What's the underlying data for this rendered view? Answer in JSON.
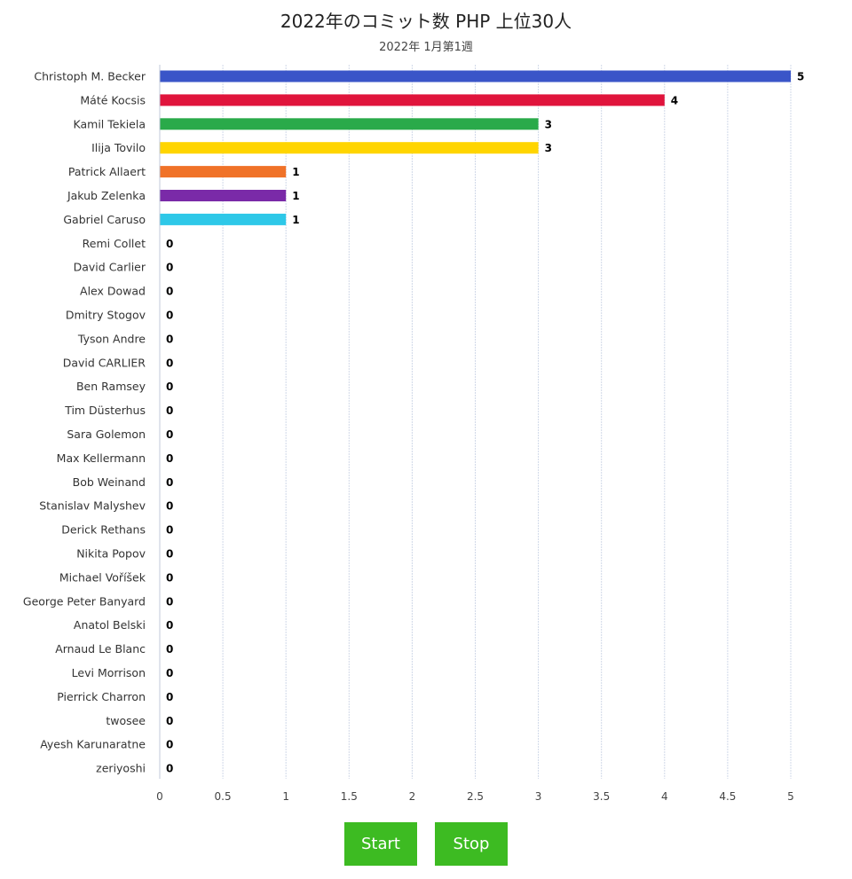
{
  "chart_data": {
    "type": "bar",
    "orientation": "horizontal",
    "title": "2022年のコミット数 PHP 上位30人",
    "subtitle": "2022年 1月第1週",
    "categories": [
      "Christoph M. Becker",
      "Máté Kocsis",
      "Kamil Tekiela",
      "Ilija Tovilo",
      "Patrick Allaert",
      "Jakub Zelenka",
      "Gabriel Caruso",
      "Remi Collet",
      "David Carlier",
      "Alex Dowad",
      "Dmitry Stogov",
      "Tyson Andre",
      "David CARLIER",
      "Ben Ramsey",
      "Tim Düsterhus",
      "Sara Golemon",
      "Max Kellermann",
      "Bob Weinand",
      "Stanislav Malyshev",
      "Derick Rethans",
      "Nikita Popov",
      "Michael Voříšek",
      "George Peter Banyard",
      "Anatol Belski",
      "Arnaud Le Blanc",
      "Levi Morrison",
      "Pierrick Charron",
      "twosee",
      "Ayesh Karunaratne",
      "zeriyoshi"
    ],
    "values": [
      5,
      4,
      3,
      3,
      1,
      1,
      1,
      0,
      0,
      0,
      0,
      0,
      0,
      0,
      0,
      0,
      0,
      0,
      0,
      0,
      0,
      0,
      0,
      0,
      0,
      0,
      0,
      0,
      0,
      0
    ],
    "colors": [
      "#3a55c8",
      "#e0143c",
      "#2aaa4a",
      "#ffd500",
      "#f07228",
      "#7a2aa8",
      "#2ec8e8"
    ],
    "xlim": [
      0,
      5
    ],
    "xticks": [
      "0",
      "0.5",
      "1",
      "1.5",
      "2",
      "2.5",
      "3",
      "3.5",
      "4",
      "4.5",
      "5"
    ],
    "grid": true,
    "legend": "none"
  },
  "controls": {
    "start_label": "Start",
    "stop_label": "Stop"
  },
  "colors": {
    "button": "#3dbb22",
    "grid": "#d0d8e8"
  }
}
